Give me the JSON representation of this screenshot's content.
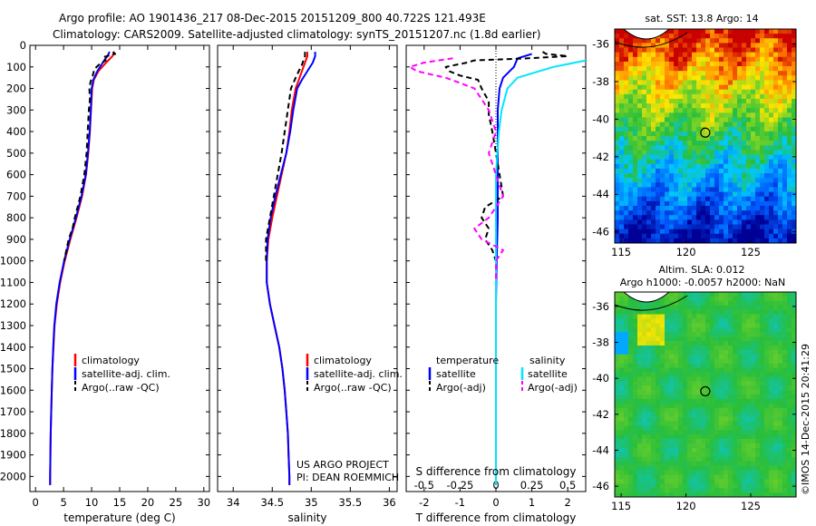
{
  "header": {
    "line1": "Argo profile: AO 1901436_217 08-Dec-2015 20151209_800 40.722S 121.493E",
    "line2": "Climatology: CARS2009. Satellite-adjusted climatology: synTS_20151207.nc (1.8d earlier)"
  },
  "colors": {
    "climatology": "#ff0000",
    "satellite": "#0000ff",
    "argo": "#000000",
    "sat_salinity": "#00e5ff",
    "argo_salinity": "#ff00ff"
  },
  "footer": {
    "project_line1": "US ARGO PROJECT",
    "project_line2": "PI: DEAN ROEMMICH",
    "stamp": "©IMOS 14-Dec-2015 20:41:29"
  },
  "chart_data": [
    {
      "type": "line",
      "panel": "temperature",
      "xlabel": "temperature (deg C)",
      "ylabel": "",
      "xlim": [
        -1,
        31
      ],
      "ylim": [
        2070,
        0
      ],
      "x_ticks": [
        0,
        5,
        10,
        15,
        20,
        25,
        30
      ],
      "y_ticks": [
        0,
        100,
        200,
        300,
        400,
        500,
        600,
        700,
        800,
        900,
        1000,
        1100,
        1200,
        1300,
        1400,
        1500,
        1600,
        1700,
        1800,
        1900,
        2000
      ],
      "legend": [
        "climatology",
        "satellite-adj. clim.",
        "Argo(..raw -QC)"
      ],
      "series": [
        {
          "name": "climatology",
          "style": "solid",
          "color": "#ff0000",
          "depth": [
            30,
            50,
            80,
            120,
            160,
            200,
            300,
            400,
            500,
            600,
            700,
            800,
            900,
            1000,
            1100,
            1200,
            1300,
            1400,
            1500,
            1600,
            1700,
            1800,
            1900,
            2000,
            2040
          ],
          "values": [
            14.0,
            13.7,
            12.6,
            11.2,
            10.4,
            10.1,
            9.9,
            9.7,
            9.4,
            9.0,
            8.3,
            7.3,
            6.2,
            5.2,
            4.4,
            3.8,
            3.4,
            3.2,
            3.0,
            2.9,
            2.8,
            2.7,
            2.65,
            2.6,
            2.6
          ]
        },
        {
          "name": "satellite-adj. clim.",
          "style": "solid",
          "color": "#0000ff",
          "depth": [
            30,
            50,
            80,
            120,
            160,
            200,
            300,
            400,
            500,
            600,
            700,
            800,
            900,
            1000,
            1100,
            1200,
            1300,
            1400,
            1500,
            1600,
            1700,
            1800,
            1900,
            2000,
            2040
          ],
          "values": [
            13.2,
            12.8,
            12.0,
            11.0,
            10.3,
            10.0,
            9.85,
            9.65,
            9.35,
            8.95,
            8.2,
            7.2,
            6.1,
            5.1,
            4.3,
            3.7,
            3.35,
            3.15,
            3.0,
            2.9,
            2.8,
            2.7,
            2.65,
            2.6,
            2.6
          ]
        },
        {
          "name": "Argo(..raw -QC)",
          "style": "dashed",
          "color": "#000000",
          "depth": [
            30,
            40,
            55,
            70,
            90,
            110,
            140,
            170,
            200,
            250,
            300,
            400,
            500,
            600,
            700,
            800,
            850,
            900,
            1000
          ],
          "values": [
            13.8,
            14.2,
            12.0,
            12.5,
            11.3,
            10.5,
            10.2,
            9.8,
            9.6,
            9.7,
            9.5,
            9.3,
            9.1,
            8.7,
            8.0,
            7.0,
            6.6,
            5.9,
            5.1
          ]
        }
      ]
    },
    {
      "type": "line",
      "panel": "salinity",
      "xlabel": "salinity",
      "ylabel": "",
      "xlim": [
        33.8,
        36.1
      ],
      "ylim": [
        2070,
        0
      ],
      "x_ticks": [
        34,
        34.5,
        35,
        35.5,
        36
      ],
      "x_tick_labels": [
        "34",
        "34.5",
        "35",
        "35.5",
        "36"
      ],
      "legend": [
        "climatology",
        "satellite-adj. clim.",
        "Argo(..raw -QC)"
      ],
      "series": [
        {
          "name": "climatology",
          "style": "solid",
          "color": "#ff0000",
          "depth": [
            30,
            50,
            100,
            150,
            200,
            300,
            400,
            500,
            600,
            700,
            800,
            900,
            1000,
            1100,
            1200,
            1300,
            1400,
            1500,
            1600,
            1700,
            1800,
            1900,
            2000,
            2040
          ],
          "values": [
            34.95,
            34.95,
            34.9,
            34.85,
            34.8,
            34.75,
            34.72,
            34.68,
            34.62,
            34.56,
            34.5,
            34.45,
            34.43,
            34.43,
            34.47,
            34.53,
            34.59,
            34.63,
            34.66,
            34.68,
            34.7,
            34.71,
            34.72,
            34.72
          ]
        },
        {
          "name": "satellite-adj. clim.",
          "style": "solid",
          "color": "#0000ff",
          "depth": [
            30,
            50,
            80,
            120,
            160,
            200,
            300,
            400,
            500,
            600,
            700,
            800,
            900,
            1000,
            1100,
            1200,
            1300,
            1400,
            1500,
            1600,
            1700,
            1800,
            1900,
            2000,
            2040
          ],
          "values": [
            35.05,
            35.05,
            35.02,
            34.95,
            34.88,
            34.82,
            34.77,
            34.73,
            34.68,
            34.61,
            34.54,
            34.48,
            34.44,
            34.43,
            34.43,
            34.47,
            34.53,
            34.59,
            34.63,
            34.66,
            34.68,
            34.7,
            34.71,
            34.72,
            34.72
          ]
        },
        {
          "name": "Argo(..raw -QC)",
          "style": "dashed",
          "color": "#000000",
          "depth": [
            30,
            50,
            90,
            120,
            150,
            200,
            300,
            400,
            500,
            600,
            700,
            800,
            900,
            1000
          ],
          "values": [
            34.92,
            34.92,
            34.88,
            34.84,
            34.8,
            34.74,
            34.7,
            34.66,
            34.62,
            34.57,
            34.52,
            34.47,
            34.42,
            34.42
          ]
        }
      ]
    },
    {
      "type": "line",
      "panel": "difference",
      "xlabel": "T difference from climatology",
      "x2label": "S difference from climatology",
      "xlim": [
        -2.5,
        2.5
      ],
      "ylim": [
        2070,
        0
      ],
      "x_ticks": [
        -2,
        -1,
        0,
        1,
        2
      ],
      "x2_ticks": [
        -0.5,
        -0.25,
        0,
        0.25,
        0.5
      ],
      "x2_tick_labels": [
        "-0.5",
        "-0.25",
        "0",
        "0.25",
        "0.5"
      ],
      "legend_titles": [
        "temperature",
        "salinity"
      ],
      "legend": [
        "satellite",
        "Argo(-adj)",
        "satellite",
        "Argo(-adj)"
      ],
      "series": [
        {
          "name": "satellite",
          "variable": "temperature",
          "style": "solid",
          "color": "#0000ff",
          "depth": [
            40,
            60,
            100,
            150,
            200,
            300,
            400,
            600,
            800,
            1000,
            1200,
            1500,
            2040
          ],
          "values": [
            1.0,
            0.6,
            0.5,
            0.2,
            0.1,
            0.05,
            0.05,
            0.05,
            0.05,
            0.02,
            0.0,
            0.0,
            0.0
          ]
        },
        {
          "name": "Argo(-adj)",
          "variable": "temperature",
          "style": "dashed",
          "color": "#000000",
          "depth": [
            30,
            40,
            50,
            60,
            70,
            80,
            90,
            100,
            120,
            140,
            160,
            200,
            260,
            320,
            400,
            500,
            600,
            700,
            750,
            800,
            850,
            900,
            950,
            1000,
            1100,
            1200
          ],
          "values": [
            1.3,
            1.4,
            2.0,
            0.9,
            -0.6,
            -0.8,
            -1.1,
            -1.4,
            -1.3,
            -1.0,
            -0.5,
            -0.4,
            -0.2,
            -0.2,
            -0.1,
            0.0,
            0.1,
            0.2,
            -0.3,
            -0.4,
            -0.2,
            -0.3,
            -0.1,
            0.0,
            0.0,
            0.0
          ]
        },
        {
          "name": "satellite",
          "variable": "salinity",
          "style": "solid",
          "color": "#00e5ff",
          "depth": [
            40,
            60,
            100,
            150,
            200,
            300,
            400,
            600,
            800,
            1000,
            1200,
            1500,
            2040
          ],
          "values": [
            0.9,
            0.7,
            0.4,
            0.15,
            0.08,
            0.04,
            0.02,
            0.0,
            0.0,
            0.0,
            0.0,
            0.0,
            0.0
          ]
        },
        {
          "name": "Argo(-adj)",
          "variable": "salinity",
          "style": "dashed",
          "color": "#ff00ff",
          "depth": [
            60,
            80,
            100,
            120,
            150,
            200,
            300,
            400,
            500,
            600,
            700,
            800,
            850,
            900,
            950,
            1000,
            1050,
            1100
          ],
          "values": [
            -0.3,
            -0.5,
            -0.6,
            -0.55,
            -0.35,
            -0.15,
            -0.05,
            0.0,
            -0.05,
            0.0,
            0.05,
            -0.05,
            -0.15,
            -0.1,
            0.05,
            0.0,
            0.0,
            0.0
          ]
        }
      ]
    },
    {
      "type": "heatmap",
      "panel": "sat_sst_map",
      "title": "sat. SST: 13.8  Argo: 14",
      "xlim": [
        114.5,
        128.5
      ],
      "ylim": [
        -46.6,
        -35.2
      ],
      "x_ticks": [
        115,
        120,
        125
      ],
      "y_ticks": [
        -36,
        -38,
        -40,
        -42,
        -44,
        -46
      ],
      "marker": {
        "lon": 121.49,
        "lat": -40.72
      }
    },
    {
      "type": "heatmap",
      "panel": "altimetry_map",
      "title_line1": "Altim. SLA: 0.012",
      "title_line2": "Argo h1000: -0.0057 h2000: NaN",
      "xlim": [
        114.5,
        128.5
      ],
      "ylim": [
        -46.6,
        -35.2
      ],
      "x_ticks": [
        115,
        120,
        125
      ],
      "y_ticks": [
        -36,
        -38,
        -40,
        -42,
        -44,
        -46
      ],
      "marker": {
        "lon": 121.49,
        "lat": -40.72
      }
    }
  ]
}
